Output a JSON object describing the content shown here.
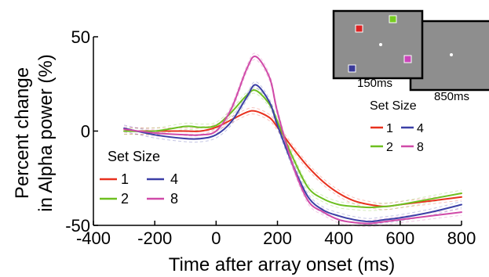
{
  "chart_data": {
    "type": "line",
    "xlabel": "Time after array onset (ms)",
    "ylabel": "Percent change in Alpha power (%)",
    "ylabel_lines": [
      "Percent change",
      "in Alpha power (%)"
    ],
    "xlim": [
      -400,
      800
    ],
    "ylim": [
      -50,
      50
    ],
    "xticks": [
      -400,
      -200,
      0,
      200,
      400,
      600,
      800
    ],
    "yticks": [
      -50,
      0,
      50
    ],
    "xtick_labels": [
      "-400",
      "-200",
      "0",
      "200",
      "400",
      "600",
      "800"
    ],
    "ytick_labels": [
      "-50",
      "0",
      "50"
    ],
    "legend_title": "Set Size",
    "series": [
      {
        "name": "1",
        "color": "#e8311e",
        "x": [
          -300,
          -200,
          -100,
          -50,
          0,
          50,
          100,
          130,
          175,
          200,
          250,
          300,
          350,
          400,
          450,
          500,
          550,
          600,
          700,
          800
        ],
        "y": [
          0,
          0,
          0,
          0,
          2,
          6,
          10,
          10.5,
          7,
          2,
          -9,
          -19,
          -27,
          -33,
          -37,
          -39,
          -40,
          -39,
          -37,
          -35
        ]
      },
      {
        "name": "2",
        "color": "#6dbf1f",
        "x": [
          -300,
          -200,
          -100,
          -50,
          0,
          50,
          100,
          130,
          175,
          200,
          250,
          300,
          350,
          400,
          450,
          500,
          550,
          600,
          700,
          800
        ],
        "y": [
          0,
          0,
          2.5,
          2,
          3,
          10,
          19,
          21.5,
          14,
          5,
          -14,
          -30,
          -36,
          -39,
          -40,
          -40.5,
          -40,
          -39,
          -36,
          -33
        ]
      },
      {
        "name": "4",
        "color": "#3b3fa6",
        "x": [
          -300,
          -200,
          -100,
          -50,
          0,
          50,
          100,
          130,
          175,
          200,
          250,
          300,
          350,
          400,
          450,
          500,
          550,
          600,
          700,
          800
        ],
        "y": [
          1.5,
          -2,
          -4,
          -4,
          -2,
          5,
          18,
          24.5,
          15,
          3,
          -18,
          -35,
          -42,
          -45,
          -47,
          -48,
          -47,
          -46,
          -43,
          -39
        ]
      },
      {
        "name": "8",
        "color": "#d04aa8",
        "x": [
          -300,
          -200,
          -100,
          -50,
          0,
          50,
          100,
          130,
          175,
          200,
          250,
          300,
          350,
          400,
          450,
          500,
          550,
          600,
          700,
          800
        ],
        "y": [
          1,
          -1,
          -2,
          -2,
          0,
          12,
          33,
          39.5,
          28,
          10,
          -18,
          -37,
          -43,
          -47,
          -48.5,
          -49,
          -48,
          -47,
          -45,
          -43
        ]
      }
    ]
  },
  "inset": {
    "frame1_label": "150ms",
    "frame2_label": "850ms",
    "legend_title": "Set Size",
    "square_colors": [
      "#dd2222",
      "#77cc22",
      "#3a3a99",
      "#cc44bb"
    ]
  }
}
